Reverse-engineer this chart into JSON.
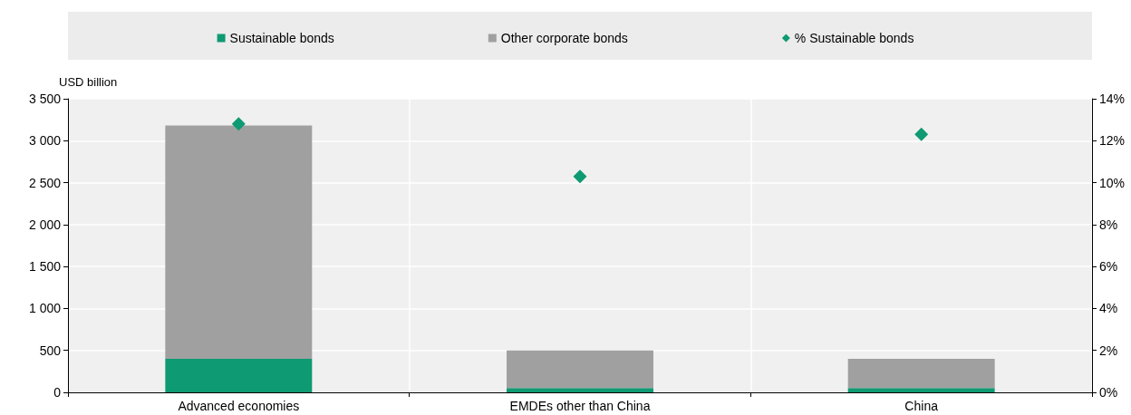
{
  "chart_data": {
    "type": "bar",
    "stacked": true,
    "categories": [
      "Advanced economies",
      "EMDEs other than China",
      "China"
    ],
    "series": [
      {
        "name": "Sustainable bonds",
        "color": "#0e9a73",
        "values": [
          400,
          50,
          50
        ]
      },
      {
        "name": "Other corporate bonds",
        "color": "#a0a0a0",
        "values": [
          2780,
          450,
          350
        ]
      },
      {
        "name": "% Sustainable bonds",
        "type": "scatter",
        "axis": "y2",
        "color": "#0e9a73",
        "values": [
          12.8,
          10.3,
          12.3
        ]
      }
    ],
    "ylabel": "USD billion",
    "ylim": [
      0,
      3500
    ],
    "yticks": [
      0,
      500,
      {
        "value": 1000,
        "label": "1 000"
      },
      {
        "value": 1500,
        "label": "1 500"
      },
      {
        "value": 2000,
        "label": "2 000"
      },
      {
        "value": 2500,
        "label": "2 500"
      },
      {
        "value": 3000,
        "label": "3 000"
      },
      {
        "value": 3500,
        "label": "3 500"
      }
    ],
    "y2lim": [
      0,
      14
    ],
    "y2ticks": [
      {
        "value": 0,
        "label": "0%"
      },
      {
        "value": 2,
        "label": "2%"
      },
      {
        "value": 4,
        "label": "4%"
      },
      {
        "value": 6,
        "label": "6%"
      },
      {
        "value": 8,
        "label": "8%"
      },
      {
        "value": 10,
        "label": "10%"
      },
      {
        "value": 12,
        "label": "12%"
      },
      {
        "value": 14,
        "label": "14%"
      }
    ],
    "grid": true,
    "legend": "top",
    "marker": "diamond"
  }
}
